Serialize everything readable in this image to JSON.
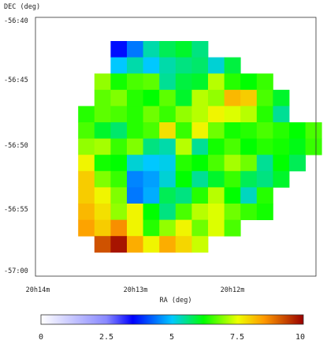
{
  "chart_data": {
    "type": "heatmap",
    "title": "",
    "xlabel": "RA (deg)",
    "ylabel": "DEC (deg)",
    "x_ticks": [
      "20h14m",
      "20h13m",
      "20h12m"
    ],
    "y_ticks": [
      "-56:40",
      "-56:45",
      "-56:50",
      "-56:55",
      "-57:00"
    ],
    "colorbar": {
      "ticks": [
        "0",
        "2.5",
        "5",
        "7.5",
        "10"
      ],
      "range": [
        0,
        10
      ],
      "stops": [
        {
          "v": 0,
          "c": "#ffffff"
        },
        {
          "v": 2.5,
          "c": "#8888ff"
        },
        {
          "v": 3.5,
          "c": "#0000ff"
        },
        {
          "v": 5,
          "c": "#00c8ff"
        },
        {
          "v": 6.2,
          "c": "#00ff00"
        },
        {
          "v": 7.5,
          "c": "#eeff00"
        },
        {
          "v": 8.5,
          "c": "#ff9900"
        },
        {
          "v": 10,
          "c": "#990000"
        }
      ]
    },
    "cell_rows": [
      {
        "label": "r01",
        "start_col": 4,
        "values": [
          3.6,
          4.4,
          5.4,
          5.8,
          6.0,
          5.6
        ]
      },
      {
        "label": "r02",
        "start_col": 4,
        "values": [
          5.0,
          5.4,
          5.0,
          5.4,
          5.6,
          5.7,
          5.2,
          5.9
        ]
      },
      {
        "label": "r03",
        "start_col": 3,
        "values": [
          7.0,
          6.3,
          6.6,
          6.7,
          5.5,
          5.9,
          6.0,
          7.2,
          6.4,
          6.2,
          6.5
        ]
      },
      {
        "label": "r04",
        "start_col": 3,
        "values": [
          6.7,
          6.9,
          6.4,
          6.2,
          6.7,
          6.0,
          7.2,
          7.0,
          8.2,
          8.0,
          6.6,
          6.0
        ]
      },
      {
        "label": "r05",
        "start_col": 2,
        "values": [
          6.4,
          6.7,
          6.6,
          6.4,
          6.8,
          6.5,
          7.0,
          7.2,
          7.6,
          7.4,
          7.2,
          6.4,
          5.5
        ]
      },
      {
        "label": "r06",
        "start_col": 2,
        "values": [
          6.6,
          6.0,
          5.7,
          6.4,
          6.6,
          7.8,
          6.5,
          7.6,
          6.8,
          6.3,
          6.4,
          6.6,
          6.4,
          6.2,
          6.6
        ]
      },
      {
        "label": "r07",
        "start_col": 2,
        "values": [
          7.0,
          7.1,
          6.5,
          6.9,
          5.6,
          5.4,
          7.2,
          5.5,
          6.3,
          6.6,
          6.2,
          6.4,
          6.3,
          6.1,
          6.5
        ]
      },
      {
        "label": "r08",
        "start_col": 2,
        "values": [
          7.6,
          6.3,
          6.2,
          5.2,
          5.0,
          5.1,
          6.4,
          6.2,
          6.6,
          7.1,
          6.8,
          5.5,
          6.2,
          5.8
        ]
      },
      {
        "label": "r09",
        "start_col": 2,
        "values": [
          8.0,
          6.9,
          6.5,
          4.5,
          4.7,
          5.2,
          6.2,
          5.5,
          6.0,
          6.5,
          5.8,
          5.6,
          6.0
        ]
      },
      {
        "label": "r10",
        "start_col": 2,
        "values": [
          8.0,
          7.6,
          6.9,
          4.4,
          4.8,
          5.8,
          5.6,
          6.4,
          7.2,
          6.2,
          5.3,
          6.4
        ]
      },
      {
        "label": "r11",
        "start_col": 2,
        "values": [
          8.2,
          7.8,
          7.0,
          7.6,
          6.2,
          5.6,
          6.6,
          7.2,
          7.4,
          6.8,
          6.5,
          6.3
        ]
      },
      {
        "label": "r12",
        "start_col": 2,
        "values": [
          8.4,
          8.0,
          8.6,
          7.6,
          6.4,
          7.0,
          7.6,
          6.8,
          7.4,
          6.6
        ]
      },
      {
        "label": "r13",
        "start_col": 3,
        "values": [
          9.2,
          9.8,
          8.3,
          7.6,
          8.3,
          7.9,
          7.3
        ]
      }
    ]
  }
}
